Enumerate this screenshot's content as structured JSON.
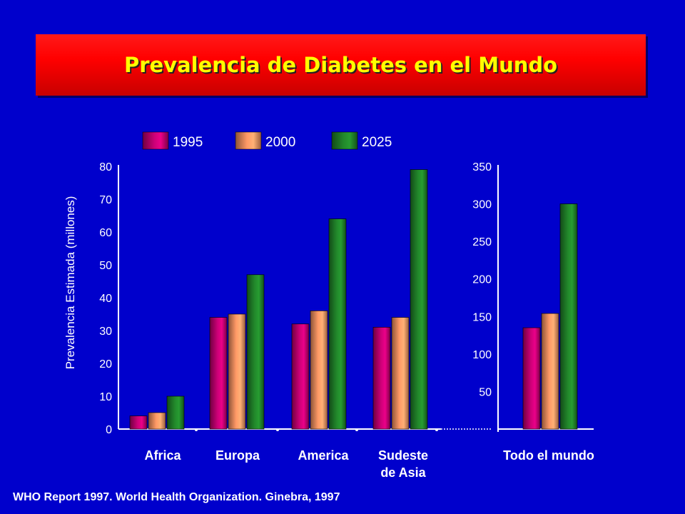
{
  "title": "Prevalencia de Diabetes en el Mundo",
  "source": "WHO Report 1997. World Health Organization. Ginebra, 1997",
  "colors": {
    "background": "#0000CC",
    "title_bg": "#FF0000",
    "title_text": "#FFFF00",
    "series": [
      "#CC0077",
      "#FF9966",
      "#22882B"
    ]
  },
  "chart_data": [
    {
      "type": "bar",
      "ylabel": "Prevalencia Estimada (millones)",
      "ylim": [
        0,
        80
      ],
      "yticks": [
        "0",
        "10",
        "20",
        "30",
        "40",
        "50",
        "60",
        "70",
        "80"
      ],
      "categories": [
        "Africa",
        "Europa",
        "America",
        "Sudeste de Asia"
      ],
      "category_lines": [
        [
          "Africa"
        ],
        [
          "Europa"
        ],
        [
          "America"
        ],
        [
          "Sudeste",
          "de Asia"
        ]
      ],
      "legend": [
        "1995",
        "2000",
        "2025"
      ],
      "series": [
        {
          "name": "1995",
          "values": [
            4,
            34,
            32,
            31
          ]
        },
        {
          "name": "2000",
          "values": [
            5,
            35,
            36,
            34
          ]
        },
        {
          "name": "2025",
          "values": [
            10,
            47,
            64,
            79
          ]
        }
      ]
    },
    {
      "type": "bar",
      "ylim": [
        0,
        350
      ],
      "yticks": [
        "50",
        "100",
        "150",
        "200",
        "250",
        "300",
        "350"
      ],
      "categories": [
        "Todo el mundo"
      ],
      "series": [
        {
          "name": "1995",
          "values": [
            135
          ]
        },
        {
          "name": "2000",
          "values": [
            154
          ]
        },
        {
          "name": "2025",
          "values": [
            300
          ]
        }
      ]
    }
  ]
}
